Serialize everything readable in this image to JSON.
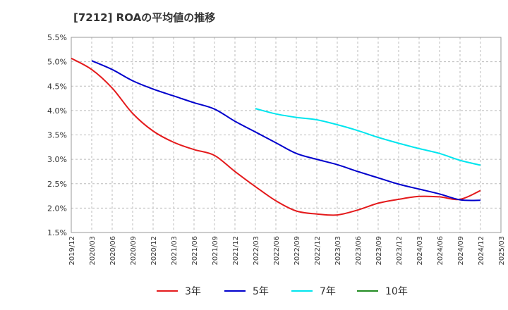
{
  "chart_data": {
    "type": "line",
    "title": "[7212]  ROAの平均値の推移",
    "xlabel": "",
    "ylabel": "",
    "ylim": [
      1.5,
      5.5
    ],
    "grid": true,
    "legend_position": "bottom",
    "y_ticks": [
      "5.5%",
      "5.0%",
      "4.5%",
      "4.0%",
      "3.5%",
      "3.0%",
      "2.5%",
      "2.0%",
      "1.5%"
    ],
    "x_ticks": [
      "2019/12",
      "2020/03",
      "2020/06",
      "2020/09",
      "2020/12",
      "2021/03",
      "2021/06",
      "2021/09",
      "2021/12",
      "2022/03",
      "2022/06",
      "2022/09",
      "2022/12",
      "2023/03",
      "2023/06",
      "2023/09",
      "2023/12",
      "2024/03",
      "2024/06",
      "2024/09",
      "2024/12",
      "2025/03"
    ],
    "series": [
      {
        "name": "3年",
        "color": "#e41a1c",
        "x": [
          "2019/12",
          "2020/03",
          "2020/06",
          "2020/09",
          "2020/12",
          "2021/03",
          "2021/06",
          "2021/09",
          "2021/12",
          "2022/03",
          "2022/06",
          "2022/09",
          "2022/12",
          "2023/03",
          "2023/06",
          "2023/09",
          "2023/12",
          "2024/03",
          "2024/06",
          "2024/09",
          "2024/12"
        ],
        "values": [
          5.07,
          4.84,
          4.46,
          3.94,
          3.58,
          3.35,
          3.2,
          3.08,
          2.75,
          2.44,
          2.15,
          1.94,
          1.88,
          1.86,
          1.96,
          2.1,
          2.18,
          2.24,
          2.23,
          2.18,
          2.36
        ]
      },
      {
        "name": "5年",
        "color": "#0000cc",
        "x": [
          "2020/03",
          "2020/06",
          "2020/09",
          "2020/12",
          "2021/03",
          "2021/06",
          "2021/09",
          "2021/12",
          "2022/03",
          "2022/06",
          "2022/09",
          "2022/12",
          "2023/03",
          "2023/06",
          "2023/09",
          "2023/12",
          "2024/03",
          "2024/06",
          "2024/09",
          "2024/12"
        ],
        "values": [
          5.02,
          4.84,
          4.61,
          4.44,
          4.3,
          4.16,
          4.03,
          3.78,
          3.56,
          3.34,
          3.12,
          3.0,
          2.89,
          2.75,
          2.62,
          2.49,
          2.39,
          2.29,
          2.17,
          2.16
        ]
      },
      {
        "name": "7年",
        "color": "#00e5ee",
        "x": [
          "2022/03",
          "2022/06",
          "2022/09",
          "2022/12",
          "2023/03",
          "2023/06",
          "2023/09",
          "2023/12",
          "2024/03",
          "2024/06",
          "2024/09",
          "2024/12"
        ],
        "values": [
          4.04,
          3.93,
          3.86,
          3.81,
          3.71,
          3.59,
          3.45,
          3.33,
          3.22,
          3.12,
          2.98,
          2.88
        ]
      },
      {
        "name": "10年",
        "color": "#228b22",
        "x": [],
        "values": []
      }
    ]
  }
}
